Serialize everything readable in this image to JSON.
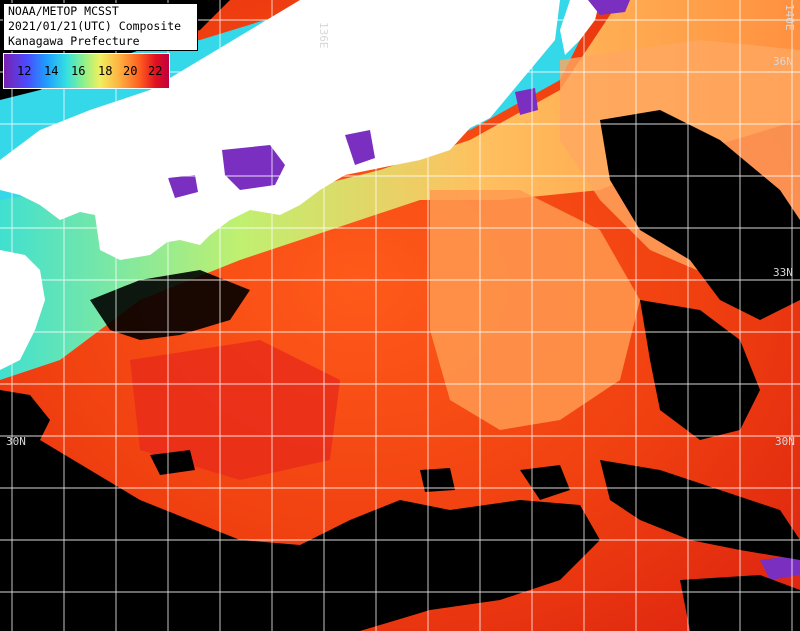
{
  "title": {
    "line1": "NOAA/METOP MCSST",
    "line2": "2021/01/21(UTC) Composite",
    "line3": "Kanagawa Prefecture"
  },
  "colorbar": {
    "ticks": [
      "12",
      "14",
      "16",
      "18",
      "20",
      "22"
    ],
    "colors": [
      "#7a1fb0",
      "#4a4cff",
      "#1f9fff",
      "#35e0e0",
      "#8cf08c",
      "#f0f060",
      "#ffb040",
      "#ff6020",
      "#e01020"
    ]
  },
  "graticule": {
    "lat_labels": [
      "36N",
      "33N",
      "30N",
      "30N"
    ],
    "lon_labels": [
      "136E",
      "140E"
    ]
  },
  "colors": {
    "land": "#ffffff",
    "cloud": "#000000",
    "grid": "#ffffff",
    "warm_sea": "#f04a10",
    "mid_sea": "#ff9a40",
    "cool_sea": "#35e0e0"
  }
}
